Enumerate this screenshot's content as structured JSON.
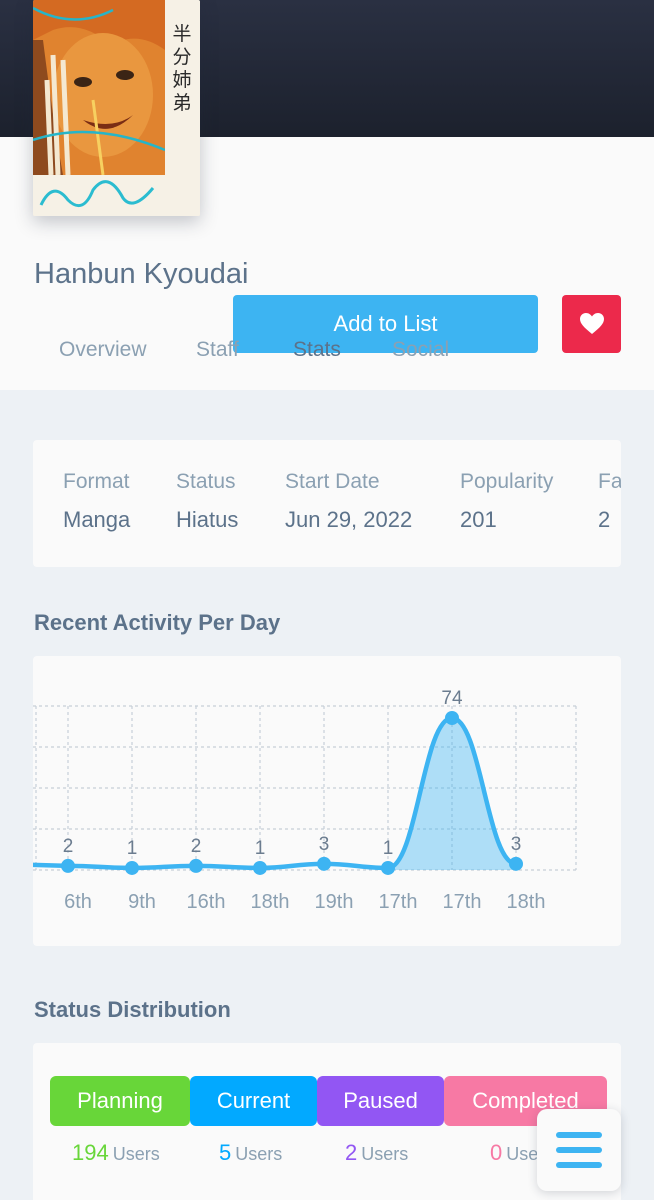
{
  "media": {
    "title": "Hanbun Kyoudai",
    "add_to_list_label": "Add to List",
    "favourite_icon": "heart-icon",
    "cover_text": "半分姉弟"
  },
  "tabs": [
    {
      "label": "Overview"
    },
    {
      "label": "Staff"
    },
    {
      "label": "Stats",
      "active": true
    },
    {
      "label": "Social"
    }
  ],
  "info": {
    "format_label": "Format",
    "format_value": "Manga",
    "status_label": "Status",
    "status_value": "Hiatus",
    "start_label": "Start Date",
    "start_value": "Jun 29, 2022",
    "popularity_label": "Popularity",
    "popularity_value": "201",
    "favourites_label": "Fa",
    "favourites_value": "2"
  },
  "activity": {
    "title": "Recent Activity Per Day"
  },
  "chart_data": {
    "type": "area",
    "title": "Recent Activity Per Day",
    "categories": [
      "6th",
      "9th",
      "16th",
      "18th",
      "19th",
      "17th",
      "17th",
      "18th"
    ],
    "values": [
      2,
      1,
      2,
      1,
      3,
      1,
      74,
      3
    ],
    "ylim": [
      0,
      80
    ],
    "grid": true,
    "color": "#3db4f2"
  },
  "status_distribution": {
    "title": "Status Distribution",
    "users_label": "Users",
    "items": [
      {
        "label": "Planning",
        "count": "194",
        "color": "#68d639"
      },
      {
        "label": "Current",
        "count": "5",
        "color": "#02a9ff"
      },
      {
        "label": "Paused",
        "count": "2",
        "color": "#9256f3"
      },
      {
        "label": "Completed",
        "count": "0",
        "color": "#f779a4"
      }
    ]
  },
  "menu_icon": "hamburger-menu-icon"
}
